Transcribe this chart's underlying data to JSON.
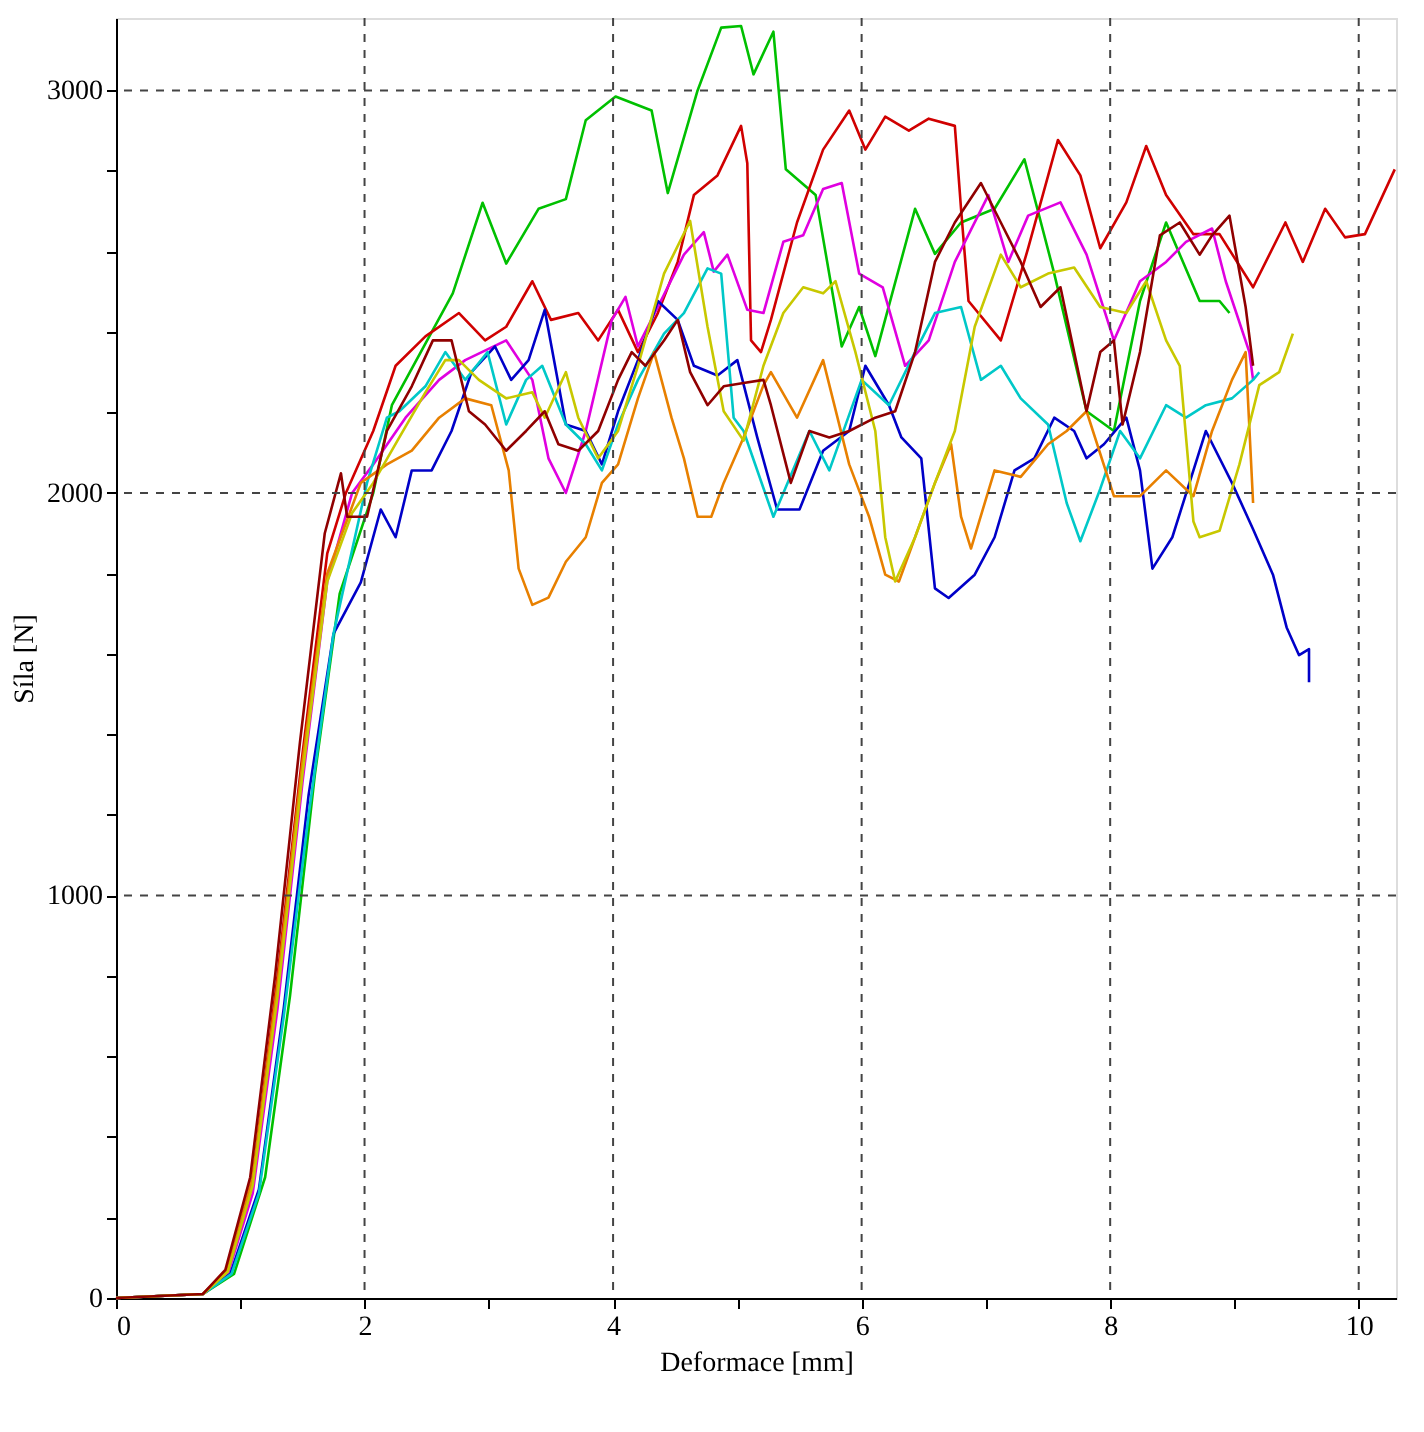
{
  "chart_data": {
    "type": "line",
    "xlabel": "Deformace [mm]",
    "ylabel": "Síla [N]",
    "xlim": [
      0,
      10.3
    ],
    "ylim": [
      0,
      3180
    ],
    "xticks": [
      0,
      {
        "value": 1,
        "label": null
      },
      2,
      {
        "value": 3,
        "label": null
      },
      4,
      {
        "value": 5,
        "label": null
      },
      6,
      {
        "value": 7,
        "label": null
      },
      8,
      {
        "value": 9,
        "label": null
      },
      10
    ],
    "yticks": [
      0,
      {
        "value": 200,
        "label": null
      },
      {
        "value": 400,
        "label": null
      },
      {
        "value": 600,
        "label": null
      },
      {
        "value": 800,
        "label": null
      },
      1000,
      {
        "value": 1200,
        "label": null
      },
      {
        "value": 1400,
        "label": null
      },
      {
        "value": 1600,
        "label": null
      },
      {
        "value": 1800,
        "label": null
      },
      2000,
      {
        "value": 2200,
        "label": null
      },
      {
        "value": 2400,
        "label": null
      },
      {
        "value": 2600,
        "label": null
      },
      {
        "value": 2800,
        "label": null
      },
      3000
    ],
    "grid": true,
    "line_style": "solid",
    "marker": "none",
    "legend": false,
    "series": [
      {
        "color": "#00c000",
        "x": [
          0,
          0.7,
          0.95,
          1.2,
          1.4,
          1.6,
          1.8,
          2.07,
          2.22,
          2.71,
          2.95,
          3.14,
          3.4,
          3.62,
          3.78,
          4.02,
          4.31,
          4.44,
          4.68,
          4.87,
          5.03,
          5.13,
          5.29,
          5.39,
          5.63,
          5.84,
          5.98,
          6.11,
          6.43,
          6.59,
          6.8,
          7.07,
          7.31,
          7.55,
          7.81,
          8.03,
          8.24,
          8.45,
          8.72,
          8.88,
          8.96
        ],
        "values": [
          0,
          10,
          60,
          300,
          750,
          1300,
          1750,
          2000,
          2218,
          2496,
          2721,
          2570,
          2706,
          2730,
          2926,
          2985,
          2950,
          2745,
          3000,
          3156,
          3160,
          3040,
          3146,
          2804,
          2740,
          2364,
          2462,
          2340,
          2706,
          2594,
          2672,
          2706,
          2829,
          2545,
          2203,
          2154,
          2477,
          2672,
          2477,
          2477,
          2447
        ]
      },
      {
        "color": "#d00000",
        "x": [
          0,
          0.7,
          0.9,
          1.1,
          1.3,
          1.5,
          1.7,
          1.85,
          2.07,
          2.25,
          2.49,
          2.76,
          2.97,
          3.14,
          3.35,
          3.5,
          3.72,
          3.88,
          4.04,
          4.2,
          4.36,
          4.52,
          4.65,
          4.84,
          5.03,
          5.08,
          5.11,
          5.19,
          5.27,
          5.48,
          5.69,
          5.9,
          6.03,
          6.19,
          6.38,
          6.54,
          6.75,
          6.8,
          6.86,
          7.12,
          7.34,
          7.58,
          7.76,
          7.92,
          8.13,
          8.29,
          8.45,
          8.67,
          8.88,
          9.15,
          9.41,
          9.55,
          9.73,
          9.89,
          10.05,
          10.29
        ],
        "values": [
          0,
          10,
          70,
          300,
          800,
          1350,
          1850,
          2000,
          2154,
          2316,
          2389,
          2447,
          2379,
          2413,
          2526,
          2430,
          2447,
          2379,
          2455,
          2350,
          2447,
          2574,
          2740,
          2789,
          2912,
          2819,
          2379,
          2350,
          2430,
          2672,
          2853,
          2950,
          2853,
          2935,
          2900,
          2930,
          2912,
          2706,
          2477,
          2379,
          2608,
          2877,
          2789,
          2608,
          2722,
          2862,
          2740,
          2643,
          2643,
          2511,
          2672,
          2574,
          2706,
          2635,
          2643,
          2804
        ]
      },
      {
        "color": "#e000e0",
        "x": [
          0,
          0.7,
          0.9,
          1.1,
          1.3,
          1.5,
          1.7,
          1.9,
          2.07,
          2.33,
          2.6,
          2.81,
          3.14,
          3.35,
          3.48,
          3.62,
          3.78,
          3.99,
          4.1,
          4.2,
          4.36,
          4.57,
          4.73,
          4.81,
          4.92,
          5.08,
          5.21,
          5.37,
          5.53,
          5.69,
          5.84,
          5.98,
          6.17,
          6.35,
          6.54,
          6.75,
          7.02,
          7.18,
          7.34,
          7.6,
          7.81,
          8.03,
          8.24,
          8.45,
          8.61,
          8.82,
          8.93,
          9.12,
          9.15
        ],
        "values": [
          0,
          10,
          60,
          260,
          720,
          1280,
          1780,
          2000,
          2071,
          2187,
          2281,
          2330,
          2379,
          2281,
          2086,
          2000,
          2154,
          2430,
          2487,
          2364,
          2462,
          2592,
          2648,
          2550,
          2592,
          2455,
          2447,
          2624,
          2640,
          2755,
          2770,
          2545,
          2511,
          2316,
          2379,
          2574,
          2740,
          2574,
          2689,
          2722,
          2592,
          2379,
          2526,
          2574,
          2624,
          2657,
          2526,
          2350,
          2281
        ]
      },
      {
        "color": "#0000c8",
        "x": [
          0,
          0.7,
          0.92,
          1.15,
          1.35,
          1.55,
          1.75,
          1.97,
          2.13,
          2.25,
          2.38,
          2.54,
          2.7,
          2.86,
          3.05,
          3.18,
          3.32,
          3.45,
          3.62,
          3.78,
          3.91,
          4.04,
          4.2,
          4.36,
          4.52,
          4.65,
          4.84,
          5.0,
          5.16,
          5.32,
          5.5,
          5.69,
          5.9,
          6.03,
          6.22,
          6.32,
          6.48,
          6.59,
          6.7,
          6.91,
          7.07,
          7.23,
          7.39,
          7.55,
          7.71,
          7.81,
          7.95,
          8.13,
          8.24,
          8.34,
          8.5,
          8.77,
          8.98,
          9.15,
          9.31,
          9.42,
          9.52,
          9.6,
          9.6
        ],
        "values": [
          0,
          10,
          60,
          270,
          720,
          1250,
          1650,
          1778,
          1959,
          1890,
          2056,
          2056,
          2154,
          2300,
          2364,
          2281,
          2330,
          2455,
          2170,
          2154,
          2071,
          2203,
          2330,
          2477,
          2430,
          2316,
          2292,
          2330,
          2138,
          1959,
          1959,
          2105,
          2154,
          2316,
          2218,
          2138,
          2086,
          1763,
          1739,
          1797,
          1890,
          2056,
          2086,
          2187,
          2154,
          2086,
          2121,
          2187,
          2056,
          1812,
          1890,
          2154,
          2025,
          1910,
          1797,
          1666,
          1597,
          1612,
          1530
        ]
      },
      {
        "color": "#00c8c8",
        "x": [
          0,
          0.7,
          0.93,
          1.15,
          1.35,
          1.55,
          1.75,
          2.02,
          2.18,
          2.28,
          2.49,
          2.65,
          2.81,
          2.99,
          3.14,
          3.3,
          3.43,
          3.62,
          3.78,
          3.91,
          4.04,
          4.2,
          4.41,
          4.57,
          4.76,
          4.87,
          4.97,
          5.05,
          5.29,
          5.58,
          5.74,
          6.0,
          6.22,
          6.43,
          6.59,
          6.8,
          6.96,
          7.12,
          7.28,
          7.5,
          7.65,
          7.76,
          7.92,
          8.08,
          8.24,
          8.45,
          8.61,
          8.77,
          8.98,
          9.15,
          9.2
        ],
        "values": [
          0,
          10,
          60,
          260,
          700,
          1200,
          1650,
          2025,
          2187,
          2203,
          2265,
          2350,
          2281,
          2350,
          2170,
          2281,
          2316,
          2170,
          2121,
          2056,
          2170,
          2281,
          2396,
          2447,
          2558,
          2545,
          2187,
          2154,
          1941,
          2154,
          2056,
          2281,
          2218,
          2350,
          2447,
          2462,
          2281,
          2316,
          2235,
          2170,
          1975,
          1880,
          2010,
          2154,
          2086,
          2218,
          2187,
          2218,
          2235,
          2281,
          2300
        ]
      },
      {
        "color": "#e88000",
        "x": [
          0,
          0.7,
          0.9,
          1.1,
          1.3,
          1.5,
          1.7,
          1.97,
          2.18,
          2.38,
          2.6,
          2.81,
          3.02,
          3.16,
          3.24,
          3.35,
          3.48,
          3.62,
          3.78,
          3.91,
          4.04,
          4.2,
          4.33,
          4.47,
          4.57,
          4.68,
          4.79,
          4.89,
          5.05,
          5.21,
          5.27,
          5.48,
          5.69,
          5.9,
          6.06,
          6.19,
          6.3,
          6.43,
          6.59,
          6.72,
          6.8,
          6.88,
          7.07,
          7.28,
          7.5,
          7.65,
          7.81,
          8.03,
          8.24,
          8.45,
          8.67,
          8.82,
          8.98,
          9.09,
          9.15
        ],
        "values": [
          0,
          10,
          70,
          300,
          780,
          1330,
          1800,
          2025,
          2071,
          2105,
          2187,
          2235,
          2218,
          2056,
          1812,
          1722,
          1740,
          1829,
          1890,
          2025,
          2071,
          2235,
          2350,
          2187,
          2086,
          1941,
          1941,
          2025,
          2138,
          2268,
          2300,
          2187,
          2330,
          2071,
          1941,
          1797,
          1780,
          1890,
          2025,
          2121,
          1941,
          1862,
          2056,
          2040,
          2121,
          2154,
          2203,
          1992,
          1992,
          2056,
          1992,
          2154,
          2281,
          2350,
          1975
        ]
      },
      {
        "color": "#c8c800",
        "x": [
          0,
          0.7,
          0.9,
          1.1,
          1.3,
          1.5,
          1.7,
          1.9,
          2.07,
          2.28,
          2.49,
          2.65,
          2.76,
          2.92,
          3.14,
          3.35,
          3.45,
          3.62,
          3.72,
          3.88,
          4.04,
          4.2,
          4.41,
          4.62,
          4.76,
          4.89,
          5.05,
          5.21,
          5.37,
          5.53,
          5.69,
          5.79,
          5.95,
          6.11,
          6.19,
          6.27,
          6.43,
          6.59,
          6.75,
          6.91,
          7.12,
          7.28,
          7.5,
          7.71,
          7.92,
          8.13,
          8.29,
          8.45,
          8.56,
          8.67,
          8.72,
          8.88,
          9.04,
          9.2,
          9.36,
          9.47
        ],
        "values": [
          0,
          10,
          65,
          280,
          750,
          1300,
          1780,
          1950,
          2025,
          2138,
          2250,
          2330,
          2330,
          2281,
          2235,
          2250,
          2187,
          2300,
          2187,
          2086,
          2154,
          2316,
          2545,
          2676,
          2413,
          2203,
          2130,
          2316,
          2447,
          2511,
          2496,
          2526,
          2350,
          2154,
          1890,
          1780,
          1890,
          2025,
          2154,
          2413,
          2592,
          2511,
          2545,
          2560,
          2462,
          2447,
          2526,
          2379,
          2316,
          1929,
          1890,
          1906,
          2071,
          2268,
          2300,
          2396
        ]
      },
      {
        "color": "#900000",
        "x": [
          0,
          0.7,
          0.88,
          1.08,
          1.28,
          1.48,
          1.68,
          1.81,
          1.86,
          2.02,
          2.18,
          2.38,
          2.55,
          2.7,
          2.84,
          2.97,
          3.14,
          3.3,
          3.45,
          3.56,
          3.72,
          3.88,
          4.04,
          4.15,
          4.26,
          4.41,
          4.52,
          4.62,
          4.76,
          4.89,
          5.05,
          5.21,
          5.27,
          5.43,
          5.58,
          5.74,
          5.9,
          6.11,
          6.27,
          6.43,
          6.59,
          6.75,
          6.96,
          7.12,
          7.28,
          7.44,
          7.6,
          7.71,
          7.81,
          7.92,
          8.03,
          8.1,
          8.24,
          8.4,
          8.56,
          8.72,
          8.82,
          8.96,
          9.09,
          9.15
        ],
        "values": [
          0,
          10,
          70,
          300,
          800,
          1380,
          1900,
          2049,
          1941,
          1941,
          2154,
          2265,
          2379,
          2379,
          2203,
          2170,
          2105,
          2154,
          2203,
          2121,
          2105,
          2154,
          2281,
          2350,
          2316,
          2379,
          2430,
          2300,
          2218,
          2265,
          2273,
          2281,
          2218,
          2025,
          2154,
          2138,
          2154,
          2187,
          2203,
          2350,
          2574,
          2672,
          2770,
          2672,
          2574,
          2462,
          2511,
          2350,
          2203,
          2350,
          2379,
          2170,
          2350,
          2640,
          2672,
          2592,
          2640,
          2689,
          2462,
          2316
        ]
      }
    ]
  }
}
